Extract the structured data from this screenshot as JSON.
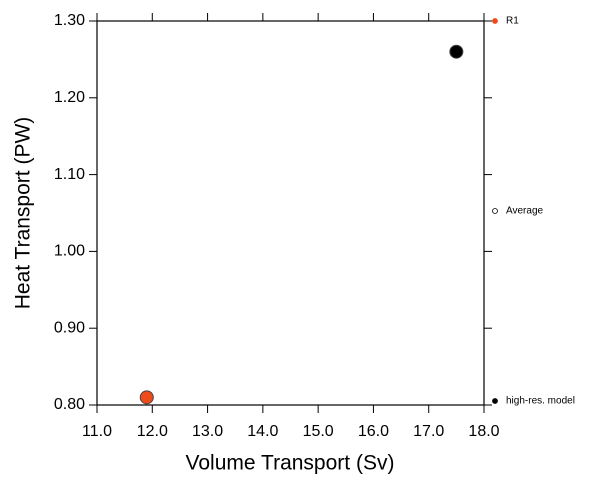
{
  "chart_data": {
    "type": "scatter",
    "x_label": "Volume Transport (Sv)",
    "y_label": "Heat Transport (PW)",
    "xlim": [
      11.0,
      18.0
    ],
    "xticks": [
      {
        "value": 11,
        "label": "11.0"
      },
      {
        "value": 12,
        "label": "12.0"
      },
      {
        "value": 13,
        "label": "13.0"
      },
      {
        "value": 14,
        "label": "14.0"
      },
      {
        "value": 15,
        "label": "15.0"
      },
      {
        "value": 16,
        "label": "16.0"
      },
      {
        "value": 17,
        "label": "17.0"
      },
      {
        "value": 18,
        "label": "18.0"
      }
    ],
    "ylim": [
      0.8,
      1.3
    ],
    "yticks": [
      {
        "value": 0.8,
        "label": "0.80"
      },
      {
        "value": 0.9,
        "label": "0.90"
      },
      {
        "value": 1.0,
        "label": "1.00"
      },
      {
        "value": 1.1,
        "label": "1.10"
      },
      {
        "value": 1.2,
        "label": "1.20"
      },
      {
        "value": 1.3,
        "label": "1.30"
      }
    ],
    "legend": "right",
    "series": [
      {
        "name": "R1",
        "color": "#f04a1a",
        "marker": "filled",
        "x": [
          11.9
        ],
        "values": [
          0.81
        ]
      },
      {
        "name": "Average",
        "color": "#000000",
        "marker": "open",
        "x": [],
        "values": []
      },
      {
        "name": "high-res. model",
        "color": "#000000",
        "marker": "filled",
        "x": [
          17.5
        ],
        "values": [
          1.26
        ]
      }
    ]
  }
}
